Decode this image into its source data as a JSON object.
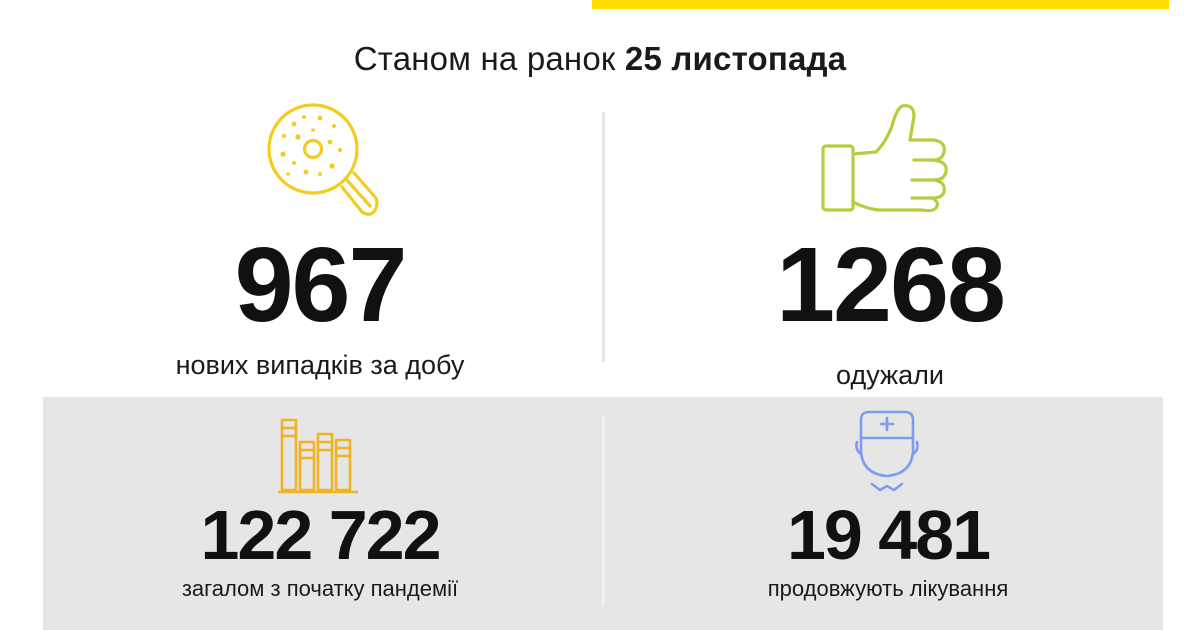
{
  "header": {
    "prefix": "Станом на ранок",
    "date": "25 листопада"
  },
  "stats": {
    "new_cases": {
      "value": "967",
      "label": "нових випадків за добу",
      "icon": "virus-magnifier-icon"
    },
    "recovered": {
      "value": "1268",
      "label": "одужали",
      "icon": "thumbs-up-icon"
    },
    "total": {
      "value": "122 722",
      "label": "загалом з початку пандемії",
      "icon": "bar-chart-icon"
    },
    "in_treatment": {
      "value": "19 481",
      "label": "продовжують лікування",
      "icon": "doctor-icon"
    }
  },
  "colors": {
    "accent_yellow": "#ffdd00",
    "magnifier_icon": "#f3cc1f",
    "thumbs_icon": "#b5ce3e",
    "chart_icon": "#f0b323",
    "doctor_icon": "#7d9cf0",
    "panel_bg": "#e6e6e6"
  }
}
